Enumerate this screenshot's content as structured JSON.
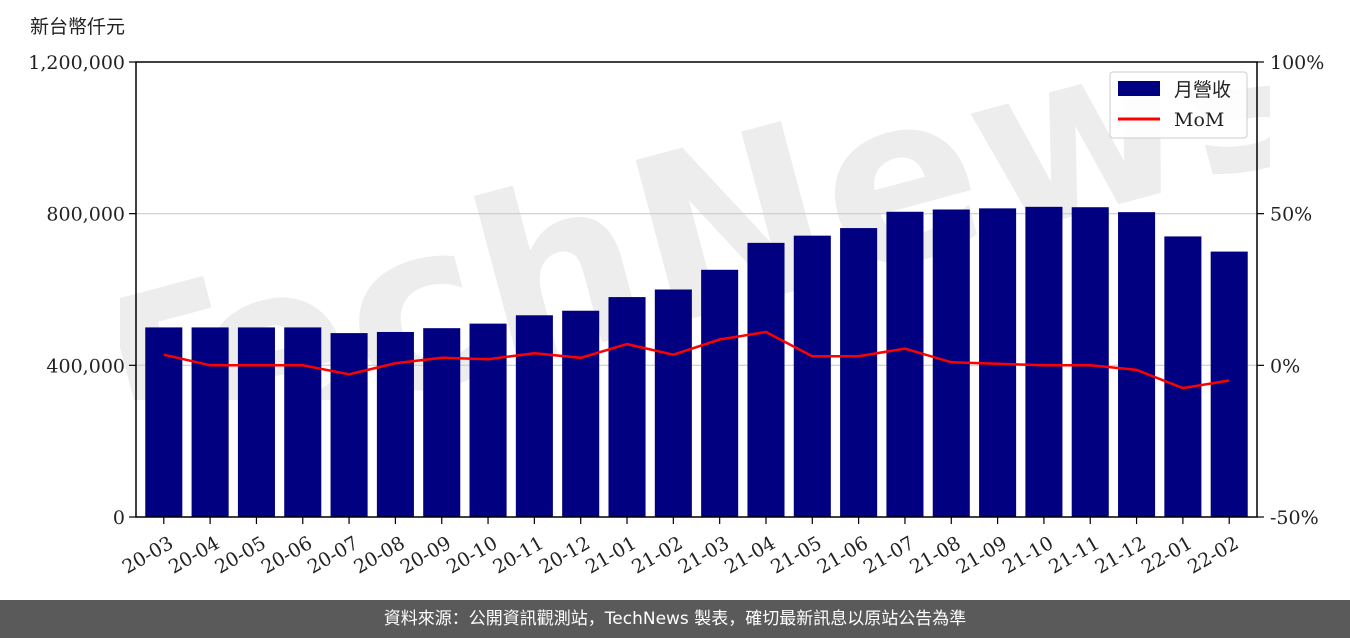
{
  "chart_data": {
    "type": "bar",
    "y_unit_label": "新台幣仟元",
    "categories": [
      "20-03",
      "20-04",
      "20-05",
      "20-06",
      "20-07",
      "20-08",
      "20-09",
      "20-10",
      "20-11",
      "20-12",
      "21-01",
      "21-02",
      "21-03",
      "21-04",
      "21-05",
      "21-06",
      "21-07",
      "21-08",
      "21-09",
      "21-10",
      "21-11",
      "21-12",
      "22-01",
      "22-02"
    ],
    "series": [
      {
        "name": "月營收",
        "type": "bar",
        "axis": "left",
        "color": "#000080",
        "values": [
          500000,
          500000,
          500000,
          500000,
          485000,
          488000,
          498000,
          510000,
          532000,
          544000,
          580000,
          600000,
          652000,
          723000,
          742000,
          762000,
          805000,
          811000,
          814000,
          818000,
          817000,
          804000,
          740000,
          700000
        ]
      },
      {
        "name": "MoM",
        "type": "line",
        "axis": "right",
        "color": "#ff0000",
        "values": [
          3.5,
          0,
          0,
          0,
          -3,
          0.7,
          2.5,
          2,
          4,
          2.5,
          7,
          3.5,
          8.5,
          11,
          3,
          3,
          5.5,
          1,
          0.5,
          0,
          0,
          -1.5,
          -7.5,
          -5
        ]
      }
    ],
    "y_left": {
      "range": [
        0,
        1200000
      ],
      "ticks": [
        "0",
        "400,000",
        "800,000",
        "1,200,000"
      ],
      "tick_values": [
        0,
        400000,
        800000,
        1200000
      ]
    },
    "y_right": {
      "range": [
        -50,
        100
      ],
      "ticks": [
        "-50%",
        "0%",
        "50%",
        "100%"
      ],
      "tick_values": [
        -50,
        0,
        50,
        100
      ]
    },
    "grid": "horizontal",
    "legend_placement": "top-right"
  },
  "watermark": {
    "text": "TechNews"
  },
  "footer": {
    "text": "資料來源：公開資訊觀測站，TechNews 製表，確切最新訊息以原站公告為準"
  }
}
